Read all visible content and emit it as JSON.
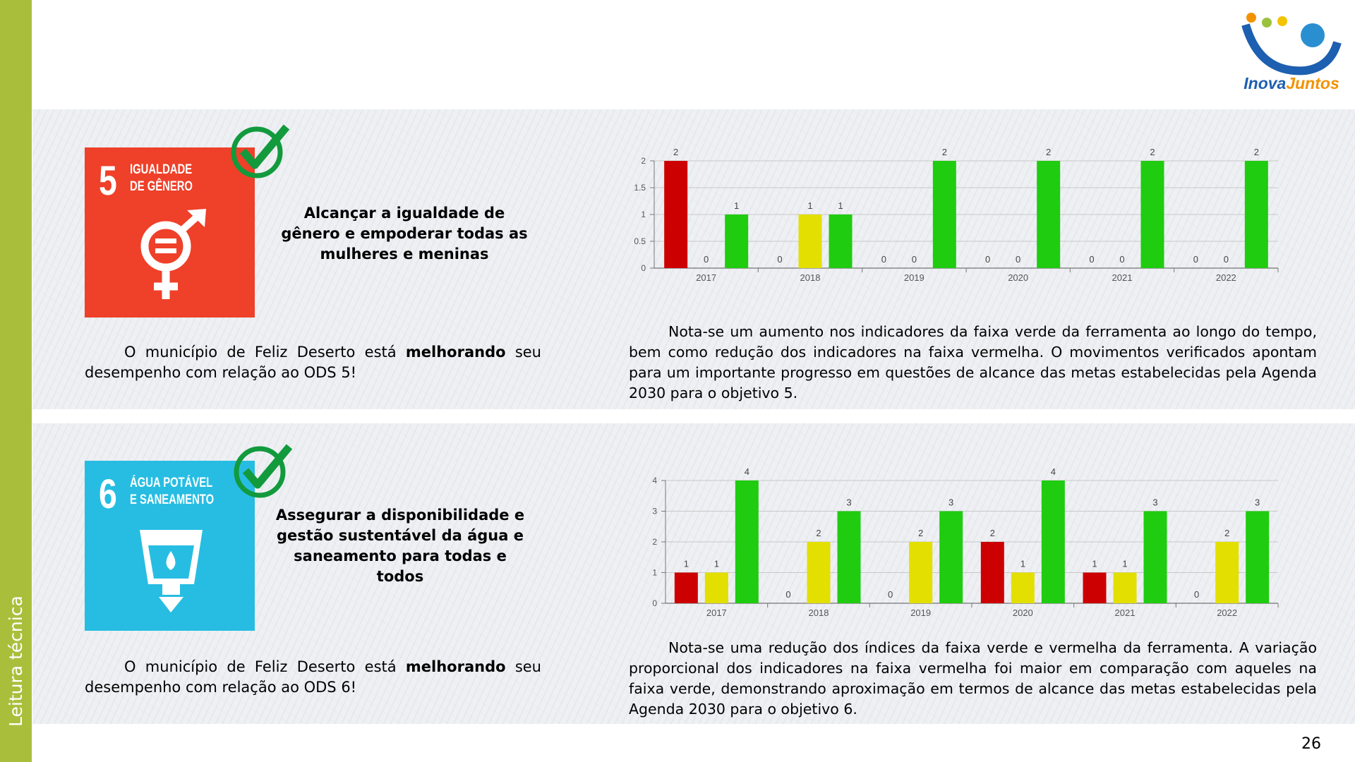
{
  "sidebar": "Leitura técnica",
  "logo": [
    "Inova",
    "Juntos"
  ],
  "page_number": "26",
  "sections": [
    {
      "sdg_number": "5",
      "sdg_title": [
        "IGUALDADE",
        "DE GÊNERO"
      ],
      "heading": "Alcançar a igualdade de gênero e empoderar todas as mulheres e meninas",
      "status": [
        "O município de Feliz Deserto está ",
        "melhorando",
        " seu desempenho com relação ao ODS 5!"
      ],
      "analysis": "Nota-se um aumento nos indicadores da faixa verde da ferramenta ao longo do tempo, bem como redução dos indicadores na faixa vermelha. O movimentos verificados apontam para um importante progresso em questões de alcance das metas estabelecidas pela Agenda 2030 para o objetivo 5."
    },
    {
      "sdg_number": "6",
      "sdg_title": [
        "ÁGUA POTÁVEL",
        "E SANEAMENTO"
      ],
      "heading": "Assegurar a disponibilidade e gestão sustentável da água e saneamento para todas e todos",
      "status": [
        "O município de Feliz Deserto está ",
        "melhorando",
        " seu desempenho com relação ao ODS 6!"
      ],
      "analysis": "Nota-se uma redução dos índices da faixa verde e vermelha da ferramenta. A variação proporcional dos indicadores na faixa vermelha foi maior em comparação com aqueles na faixa verde, demonstrando aproximação em termos de alcance das metas estabelecidas pela Agenda 2030 para o objetivo 6."
    }
  ],
  "chart_data": [
    {
      "type": "bar",
      "categories": [
        "2017",
        "2018",
        "2019",
        "2020",
        "2021",
        "2022"
      ],
      "series": [
        {
          "color": "#cc0000",
          "values": [
            2,
            0,
            0,
            0,
            0,
            0
          ]
        },
        {
          "color": "#e3df00",
          "values": [
            0,
            1,
            0,
            0,
            0,
            0
          ]
        },
        {
          "color": "#1fcc10",
          "values": [
            1,
            1,
            2,
            2,
            2,
            2
          ]
        }
      ],
      "ylim": [
        0,
        2
      ],
      "yticks": [
        0,
        0.5,
        1,
        1.5,
        2
      ],
      "grid": true
    },
    {
      "type": "bar",
      "categories": [
        "2017",
        "2018",
        "2019",
        "2020",
        "2021",
        "2022"
      ],
      "series": [
        {
          "color": "#cc0000",
          "values": [
            1,
            0,
            0,
            2,
            1,
            0
          ]
        },
        {
          "color": "#e3df00",
          "values": [
            1,
            2,
            2,
            1,
            1,
            2
          ]
        },
        {
          "color": "#1fcc10",
          "values": [
            4,
            3,
            3,
            4,
            3,
            3
          ]
        }
      ],
      "ylim": [
        0,
        4
      ],
      "yticks": [
        0,
        1,
        2,
        3,
        4
      ],
      "grid": true
    }
  ]
}
